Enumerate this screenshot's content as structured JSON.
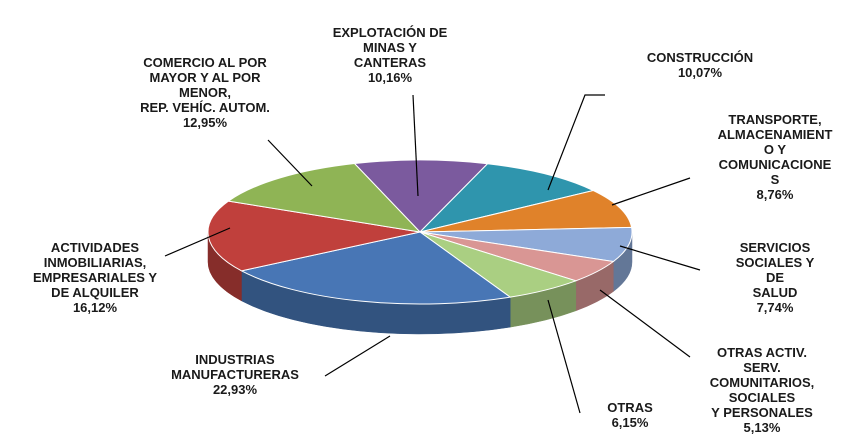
{
  "chart_data": {
    "type": "pie",
    "categories": [
      "EXPLOTACIÓN DE\nMINAS Y\nCANTERAS",
      "CONSTRUCCIÓN",
      "TRANSPORTE,\nALMACENAMIENT\nO Y\nCOMUNICACIONE\nS",
      "SERVICIOS\nSOCIALES Y DE\nSALUD",
      "OTRAS ACTIV.\nSERV.\nCOMUNITARIOS,\nSOCIALES\nY PERSONALES",
      "OTRAS",
      "INDUSTRIAS\nMANUFACTURERAS",
      "ACTIVIDADES\nINMOBILIARIAS,\nEMPRESARIALES Y\nDE ALQUILER",
      "COMERCIO AL POR\nMAYOR Y AL POR\nMENOR,\nREP. VEHÍC. AUTOM."
    ],
    "values": [
      10.16,
      10.07,
      8.76,
      7.74,
      5.13,
      6.15,
      22.93,
      16.12,
      12.95
    ],
    "value_labels": [
      "10,16%",
      "10,07%",
      "8,76%",
      "7,74%",
      "5,13%",
      "6,15%",
      "22,93%",
      "16,12%",
      "12,95%"
    ],
    "colors": [
      "#7b5a9e",
      "#2f95ad",
      "#e0822a",
      "#8eaad8",
      "#d99694",
      "#aacf82",
      "#4876b5",
      "#c0403c",
      "#8fb455"
    ]
  }
}
